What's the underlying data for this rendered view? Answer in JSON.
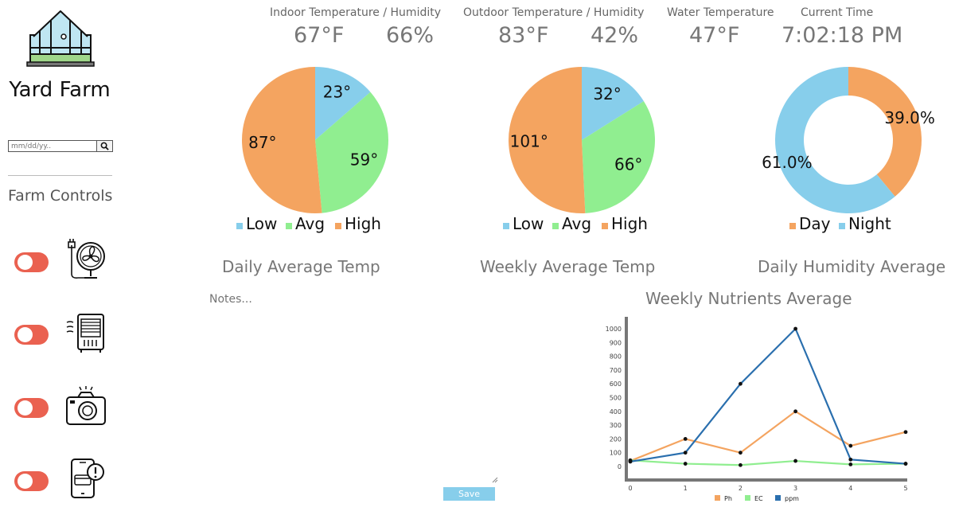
{
  "sidebar": {
    "brand": "Yard Farm",
    "date_placeholder": "mm/dd/yy..",
    "controls_title": "Farm Controls",
    "controls": [
      {
        "icon": "fan-icon",
        "state": "off"
      },
      {
        "icon": "heater-icon",
        "state": "off"
      },
      {
        "icon": "camera-icon",
        "state": "off"
      },
      {
        "icon": "phone-alert-icon",
        "state": "off"
      }
    ]
  },
  "stats": {
    "indoor_label": "Indoor Temperature / Humidity",
    "indoor_temp": "67°F",
    "indoor_humidity": "66%",
    "outdoor_label": "Outdoor Temperature / Humidity",
    "outdoor_temp": "83°F",
    "outdoor_humidity": "42%",
    "water_label": "Water Temperature",
    "water_temp": "47°F",
    "time_label": "Current Time",
    "time_value": "7:02:18 PM"
  },
  "notes": {
    "placeholder": "Notes...",
    "save_label": "Save"
  },
  "colors": {
    "low": "#87ceeb",
    "avg": "#90ee90",
    "high": "#f4a460",
    "ppm": "#2a6fae",
    "toggle": "#ea6150"
  },
  "chart_data": [
    {
      "type": "pie",
      "title": "Daily Average Temp",
      "categories": [
        "Low",
        "Avg",
        "High"
      ],
      "values": [
        23,
        59,
        87
      ],
      "labels": [
        "23°",
        "59°",
        "87°"
      ],
      "colors": [
        "#87ceeb",
        "#90ee90",
        "#f4a460"
      ],
      "legend": "bottom"
    },
    {
      "type": "pie",
      "title": "Weekly Average Temp",
      "categories": [
        "Low",
        "Avg",
        "High"
      ],
      "values": [
        32,
        66,
        101
      ],
      "labels": [
        "32°",
        "66°",
        "101°"
      ],
      "colors": [
        "#87ceeb",
        "#90ee90",
        "#f4a460"
      ],
      "legend": "bottom"
    },
    {
      "type": "pie",
      "title": "Daily Humidity Average",
      "categories": [
        "Day",
        "Night"
      ],
      "values": [
        39.0,
        61.0
      ],
      "labels": [
        "39.0%",
        "61.0%"
      ],
      "colors": [
        "#f4a460",
        "#87ceeb"
      ],
      "donut": true,
      "legend": "bottom"
    },
    {
      "type": "line",
      "title": "Weekly Nutrients Average",
      "x": [
        0,
        1,
        2,
        3,
        4,
        5
      ],
      "series": [
        {
          "name": "Ph",
          "color": "#f4a460",
          "values": [
            40,
            200,
            100,
            400,
            150,
            250
          ]
        },
        {
          "name": "EC",
          "color": "#90ee90",
          "values": [
            45,
            20,
            10,
            40,
            15,
            20
          ]
        },
        {
          "name": "ppm",
          "color": "#2a6fae",
          "values": [
            35,
            100,
            600,
            1000,
            50,
            20
          ]
        }
      ],
      "yticks": [
        0,
        100,
        200,
        300,
        400,
        500,
        600,
        700,
        800,
        900,
        1000
      ],
      "ylim": [
        0,
        1000
      ],
      "xlim": [
        0,
        5
      ],
      "legend": "bottom"
    }
  ]
}
